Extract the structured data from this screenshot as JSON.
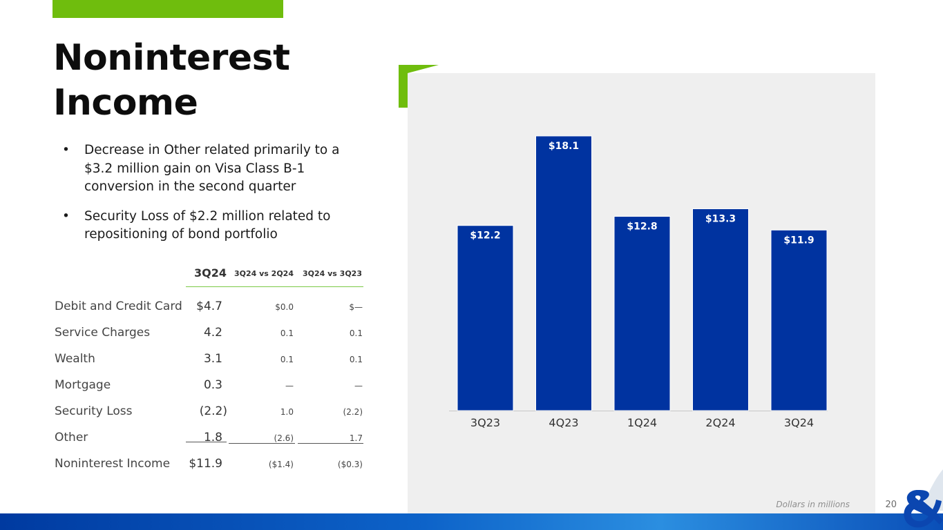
{
  "slide": {
    "title_line1": "Noninterest",
    "title_line2": "Income",
    "bullets": [
      "Decrease in Other related primarily to a $3.2 million gain on Visa Class B-1 conversion in the second quarter",
      "Security Loss of $2.2 million related to repositioning of bond portfolio"
    ],
    "footnote": "Dollars in millions",
    "page_number": "20",
    "colors": {
      "accent_green": "#6fbd0d",
      "bar_blue": "#0033a0",
      "panel_gray": "#efefef"
    }
  },
  "table": {
    "headers": [
      "3Q24",
      "3Q24 vs 2Q24",
      "3Q24 vs 3Q23"
    ],
    "rows": [
      {
        "label": "Debit and Credit Card",
        "value": "$4.7",
        "vs_2q24": "$0.0",
        "vs_3q23": "$—"
      },
      {
        "label": "Service Charges",
        "value": "4.2",
        "vs_2q24": "0.1",
        "vs_3q23": "0.1"
      },
      {
        "label": "Wealth",
        "value": "3.1",
        "vs_2q24": "0.1",
        "vs_3q23": "0.1"
      },
      {
        "label": "Mortgage",
        "value": "0.3",
        "vs_2q24": "—",
        "vs_3q23": "—"
      },
      {
        "label": "Security Loss",
        "value": "(2.2)",
        "vs_2q24": "1.0",
        "vs_3q23": "(2.2)"
      },
      {
        "label": "Other",
        "value": "1.8",
        "vs_2q24": "(2.6)",
        "vs_3q23": "1.7"
      },
      {
        "label": "Noninterest Income",
        "value": "$11.9",
        "vs_2q24": "($1.4)",
        "vs_3q23": "($0.3)"
      }
    ]
  },
  "chart_data": {
    "type": "bar",
    "categories": [
      "3Q23",
      "4Q23",
      "1Q24",
      "2Q24",
      "3Q24"
    ],
    "values": [
      12.2,
      18.1,
      12.8,
      13.3,
      11.9
    ],
    "data_labels": [
      "$12.2",
      "$18.1",
      "$12.8",
      "$13.3",
      "$11.9"
    ],
    "title": "",
    "xlabel": "",
    "ylabel": "",
    "ylim": [
      0,
      20
    ],
    "grid": false,
    "legend": "none",
    "bar_color": "#0033a0"
  }
}
